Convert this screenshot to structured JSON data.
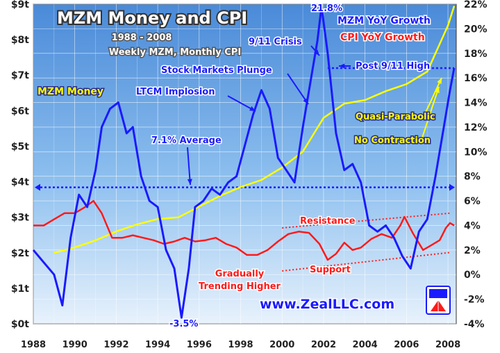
{
  "chart_data": {
    "type": "line",
    "title": "MZM Money and CPI",
    "subtitle": "1988 - 2008",
    "subtitle2": "Weekly MZM, Monthly CPI",
    "x_ticks": [
      "1988",
      "1990",
      "1992",
      "1994",
      "1996",
      "1998",
      "2000",
      "2002",
      "2004",
      "2006",
      "2008"
    ],
    "xlim": [
      1988,
      2008.4
    ],
    "left_axis": {
      "ticks": [
        "$0t",
        "$1t",
        "$2t",
        "$3t",
        "$4t",
        "$5t",
        "$6t",
        "$7t",
        "$8t",
        "$9t"
      ],
      "ylim": [
        0,
        9
      ]
    },
    "right_axis": {
      "ticks": [
        "-4%",
        "-2%",
        "0%",
        "2%",
        "4%",
        "6%",
        "8%",
        "10%",
        "12%",
        "14%",
        "16%",
        "18%",
        "20%",
        "22%"
      ],
      "ylim": [
        -4,
        22
      ]
    },
    "legend": {
      "mzm_growth": "MZM YoY Growth",
      "cpi_growth": "CPI YoY Growth",
      "mzm_money": "MZM Money"
    },
    "series": [
      {
        "name": "MZM Money",
        "axis": "left",
        "color": "#ffff00",
        "x": [
          1989.0,
          1990.0,
          1991.0,
          1992.0,
          1993.0,
          1994.0,
          1995.0,
          1996.0,
          1997.0,
          1998.0,
          1999.0,
          2000.0,
          2001.0,
          2002.0,
          2003.0,
          2004.0,
          2005.0,
          2006.0,
          2007.0,
          2008.0,
          2008.3
        ],
        "y": [
          2.0,
          2.15,
          2.35,
          2.6,
          2.8,
          2.95,
          3.0,
          3.3,
          3.6,
          3.85,
          4.05,
          4.4,
          4.85,
          5.8,
          6.2,
          6.3,
          6.55,
          6.75,
          7.1,
          8.4,
          8.95
        ]
      },
      {
        "name": "MZM YoY Growth",
        "axis": "right",
        "color": "#1a1aff",
        "x": [
          1988.0,
          1988.5,
          1989.0,
          1989.4,
          1989.8,
          1990.2,
          1990.6,
          1991.0,
          1991.3,
          1991.7,
          1992.1,
          1992.5,
          1992.8,
          1993.2,
          1993.6,
          1994.0,
          1994.4,
          1994.8,
          1995.15,
          1995.5,
          1995.8,
          1996.2,
          1996.6,
          1997.0,
          1997.4,
          1997.8,
          1998.2,
          1998.6,
          1999.0,
          1999.4,
          1999.8,
          2000.2,
          2000.6,
          2001.0,
          2001.4,
          2001.7,
          2001.9,
          2002.2,
          2002.6,
          2003.0,
          2003.4,
          2003.8,
          2004.2,
          2004.6,
          2005.0,
          2005.4,
          2005.8,
          2006.2,
          2006.6,
          2007.0,
          2007.4,
          2007.8,
          2008.1,
          2008.3
        ],
        "y": [
          2.0,
          1.0,
          0.0,
          -2.5,
          3.0,
          6.5,
          5.5,
          8.5,
          12.0,
          13.5,
          14.0,
          11.5,
          12.0,
          8.0,
          6.0,
          5.5,
          2.0,
          0.5,
          -3.5,
          0.5,
          5.5,
          6.0,
          7.0,
          6.5,
          7.5,
          8.0,
          10.5,
          13.0,
          15.0,
          13.5,
          9.5,
          8.5,
          7.5,
          12.0,
          16.0,
          19.0,
          21.8,
          18.0,
          11.5,
          8.5,
          9.0,
          7.5,
          4.0,
          3.5,
          4.0,
          3.0,
          1.5,
          0.5,
          3.5,
          4.5,
          8.0,
          12.0,
          15.0,
          16.8
        ]
      },
      {
        "name": "CPI YoY Growth",
        "axis": "right",
        "color": "#ff1a1a",
        "x": [
          1988.0,
          1988.5,
          1989.0,
          1989.5,
          1990.0,
          1990.5,
          1990.9,
          1991.3,
          1991.8,
          1992.3,
          1992.8,
          1993.3,
          1993.8,
          1994.3,
          1994.8,
          1995.3,
          1995.8,
          1996.3,
          1996.8,
          1997.3,
          1997.8,
          1998.3,
          1998.8,
          1999.3,
          1999.8,
          2000.3,
          2000.8,
          2001.3,
          2001.8,
          2002.2,
          2002.6,
          2003.0,
          2003.4,
          2003.8,
          2004.3,
          2004.8,
          2005.3,
          2005.7,
          2005.9,
          2006.3,
          2006.8,
          2007.2,
          2007.6,
          2007.9,
          2008.1,
          2008.3
        ],
        "y": [
          4.0,
          4.0,
          4.5,
          5.0,
          5.0,
          5.5,
          6.0,
          5.0,
          3.0,
          3.0,
          3.2,
          3.0,
          2.8,
          2.5,
          2.7,
          3.0,
          2.7,
          2.8,
          3.0,
          2.5,
          2.2,
          1.6,
          1.6,
          2.0,
          2.7,
          3.3,
          3.5,
          3.4,
          2.5,
          1.2,
          1.7,
          2.6,
          2.0,
          2.2,
          2.9,
          3.3,
          3.0,
          4.0,
          4.7,
          3.4,
          2.0,
          2.4,
          2.8,
          3.8,
          4.2,
          4.0
        ]
      }
    ],
    "annotations": {
      "avg": "7.1% Average",
      "ltcm": "LTCM Implosion",
      "stock": "Stock Markets Plunge",
      "crisis": "9/11 Crisis",
      "peak": "21.8%",
      "post": "Post 9/11 High",
      "trough": "-3.5%",
      "quasi": "Quasi-Parabolic",
      "nocontraction": "No Contraction",
      "resistance": "Resistance",
      "support": "Support",
      "gradually": "Gradually",
      "trending": "Trending Higher"
    },
    "watermark": "www.ZealLLC.com",
    "reference_lines": [
      {
        "name": "7.1% Average",
        "axis": "right",
        "y": 7.1
      }
    ],
    "grid": true,
    "colors": {
      "background": "#6ea9e6",
      "grid": "#ffffff"
    }
  }
}
